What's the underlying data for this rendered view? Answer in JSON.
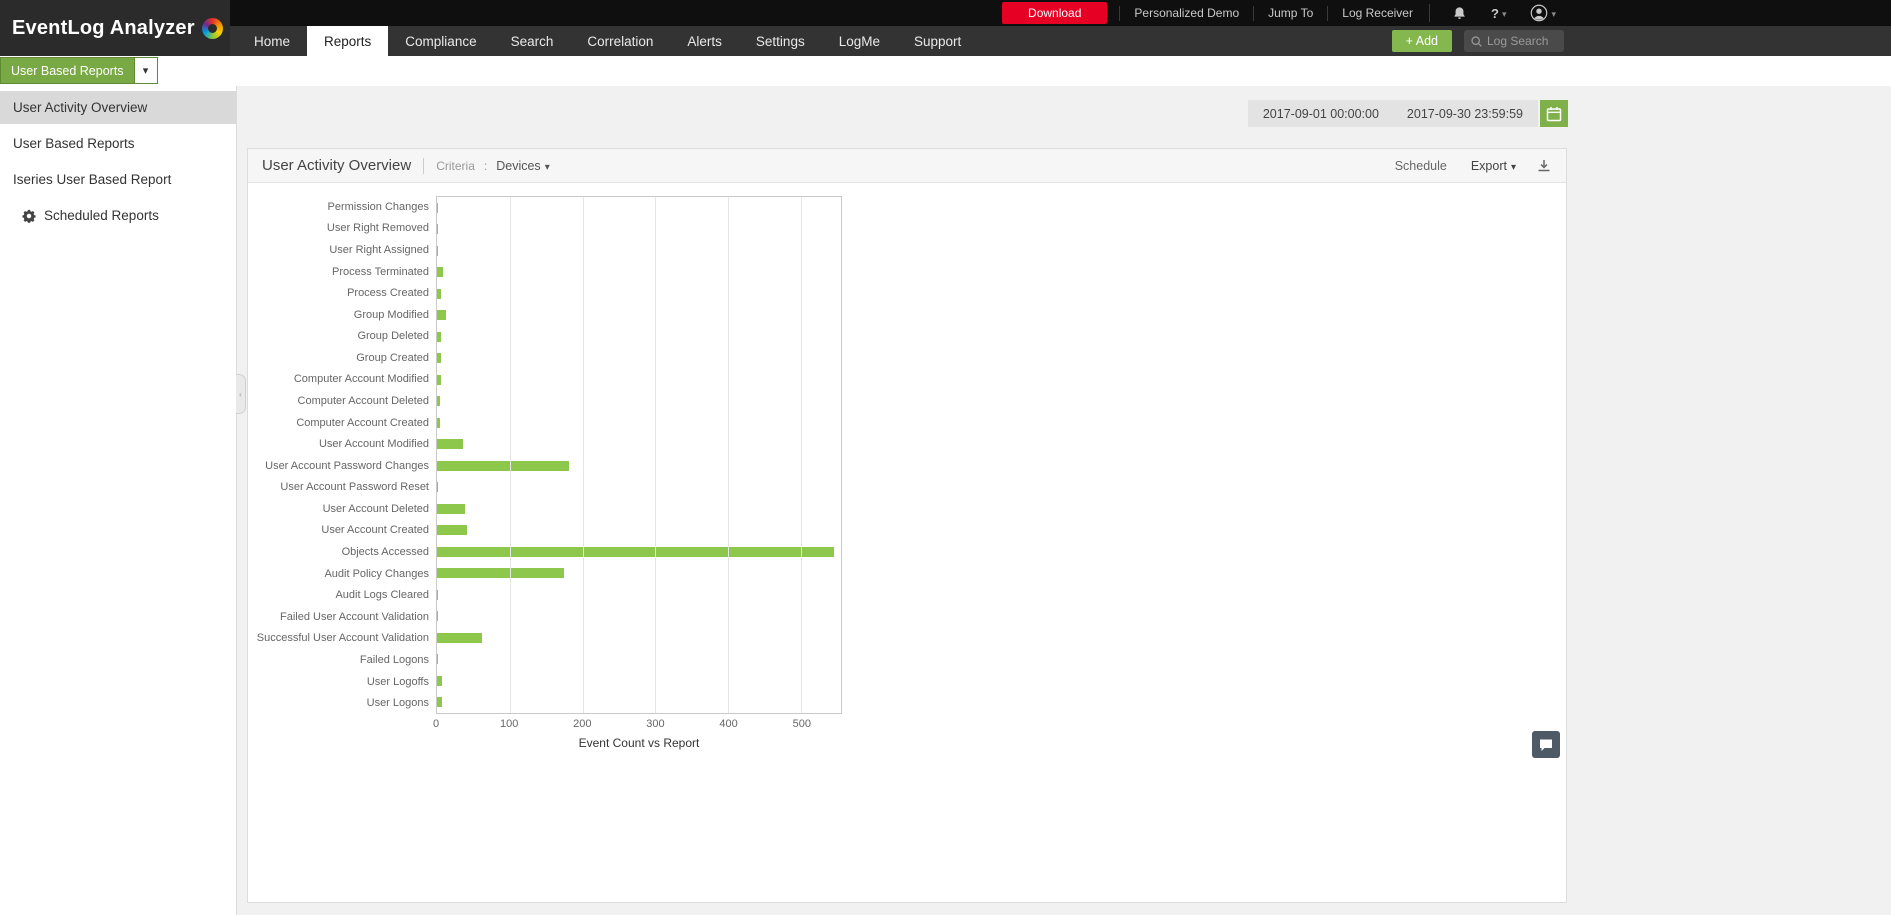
{
  "colors": {
    "accent_green": "#79a944",
    "add_button_green": "#84b74e",
    "download_red": "#e60023",
    "bar_green": "#8dc74b",
    "selected_sidebar_gray": "#d9d9d9"
  },
  "topbar": {
    "download_label": "Download",
    "links": [
      "Personalized Demo",
      "Jump To",
      "Log Receiver"
    ],
    "help_glyph": "?"
  },
  "header": {
    "logo_text": "EventLog Analyzer",
    "tabs": [
      {
        "label": "Home",
        "active": false
      },
      {
        "label": "Reports",
        "active": true
      },
      {
        "label": "Compliance",
        "active": false
      },
      {
        "label": "Search",
        "active": false
      },
      {
        "label": "Correlation",
        "active": false
      },
      {
        "label": "Alerts",
        "active": false
      },
      {
        "label": "Settings",
        "active": false
      },
      {
        "label": "LogMe",
        "active": false
      },
      {
        "label": "Support",
        "active": false
      }
    ],
    "add_button_label": "+ Add",
    "search_placeholder": "Log Search"
  },
  "report_selector": {
    "label": "User Based Reports"
  },
  "sidebar": {
    "items": [
      {
        "label": "User Activity Overview",
        "selected": true,
        "icon": null
      },
      {
        "label": "User Based Reports",
        "selected": false,
        "icon": null
      },
      {
        "label": "Iseries User Based Report",
        "selected": false,
        "icon": null
      },
      {
        "label": "Scheduled Reports",
        "selected": false,
        "icon": "gear"
      }
    ]
  },
  "daterange": {
    "start": "2017-09-01 00:00:00",
    "end": "2017-09-30 23:59:59"
  },
  "report_header": {
    "title": "User Activity Overview",
    "criteria_label": "Criteria",
    "criteria_colon": ":",
    "criteria_value": "Devices",
    "schedule_label": "Schedule",
    "export_label": "Export"
  },
  "chart_data": {
    "type": "bar",
    "orientation": "horizontal",
    "title": "",
    "xlabel": "Event Count vs Report",
    "ylabel": "",
    "x_ticks": [
      0,
      100,
      200,
      300,
      400,
      500
    ],
    "xlim": [
      0,
      555
    ],
    "grid": true,
    "legend": false,
    "bar_color": "#8dc74b",
    "categories": [
      "Permission Changes",
      "User Right Removed",
      "User Right Assigned",
      "Process Terminated",
      "Process Created",
      "Group Modified",
      "Group Deleted",
      "Group Created",
      "Computer Account Modified",
      "Computer Account Deleted",
      "Computer Account Created",
      "User Account Modified",
      "User Account Password Changes",
      "User Account Password Reset",
      "User Account Deleted",
      "User Account Created",
      "Objects Accessed",
      "Audit Policy Changes",
      "Audit Logs Cleared",
      "Failed User Account Validation",
      "Successful User Account Validation",
      "Failed Logons",
      "User Logoffs",
      "User Logons"
    ],
    "values": [
      2,
      1,
      1,
      8,
      5,
      13,
      5,
      6,
      5,
      4,
      4,
      36,
      181,
      1,
      38,
      41,
      546,
      174,
      1,
      1,
      62,
      2,
      7,
      7
    ]
  }
}
